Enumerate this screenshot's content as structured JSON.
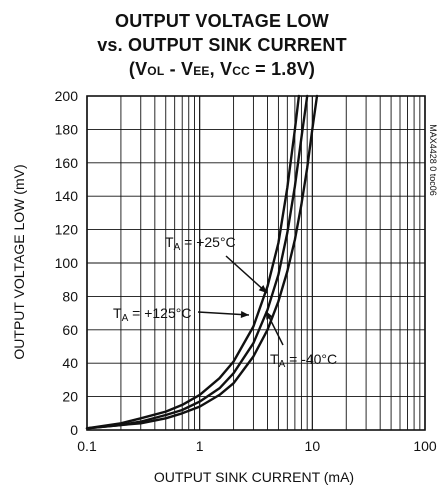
{
  "chart_data": {
    "type": "line",
    "title_line1": "OUTPUT VOLTAGE LOW",
    "title_line2": "vs. OUTPUT SINK CURRENT",
    "title_line3": {
      "open": "(V",
      "vol_sub": "OL",
      "dash": " - V",
      "vee_sub": "EE",
      "sep": ", V",
      "vcc_sub": "CC",
      "tail": " = 1.8V)"
    },
    "xlabel": "OUTPUT SINK CURRENT (mA)",
    "ylabel": "OUTPUT VOLTAGE LOW (mV)",
    "xscale": "log",
    "xlim": [
      0.1,
      100
    ],
    "ylim": [
      0,
      200
    ],
    "x_ticks": [
      "0.1",
      "1",
      "10",
      "100"
    ],
    "y_ticks": [
      "0",
      "20",
      "40",
      "60",
      "80",
      "100",
      "120",
      "140",
      "160",
      "180",
      "200"
    ],
    "grid": true,
    "watermark": "MAX4428 0 toc06",
    "series": [
      {
        "name": "TA = +125°C",
        "label_parts": {
          "t": "T",
          "sub": "A",
          "rest": " = +125°C"
        },
        "x": [
          0.1,
          0.2,
          0.3,
          0.5,
          0.7,
          1.0,
          1.5,
          2.0,
          3.0,
          4.0,
          5.0,
          6.0,
          7.0,
          7.6
        ],
        "y": [
          1.0,
          4.0,
          7.0,
          11.0,
          15.0,
          21.0,
          31.0,
          41.0,
          62.0,
          86.0,
          112.0,
          145.0,
          180.0,
          200.0
        ]
      },
      {
        "name": "TA = +25°C",
        "label_parts": {
          "t": "T",
          "sub": "A",
          "rest": " = +25°C"
        },
        "x": [
          0.1,
          0.2,
          0.3,
          0.5,
          0.7,
          1.0,
          1.5,
          2.0,
          3.0,
          4.0,
          5.0,
          6.0,
          7.0,
          8.0,
          9.0
        ],
        "y": [
          1.0,
          3.0,
          5.0,
          9.0,
          12.0,
          17.0,
          25.0,
          34.0,
          52.0,
          72.0,
          93.0,
          118.0,
          146.0,
          175.0,
          200.0
        ]
      },
      {
        "name": "TA = -40°C",
        "label_parts": {
          "t": "T",
          "sub": "A",
          "rest": " = -40°C"
        },
        "x": [
          0.1,
          0.2,
          0.3,
          0.5,
          0.7,
          1.0,
          1.5,
          2.0,
          3.0,
          4.0,
          5.0,
          6.0,
          7.0,
          8.0,
          9.0,
          10.0,
          11.0
        ],
        "y": [
          1.0,
          3.0,
          4.0,
          7.0,
          10.0,
          14.0,
          21.0,
          28.0,
          44.0,
          60.0,
          77.0,
          95.0,
          114.0,
          135.0,
          157.0,
          180.0,
          200.0
        ]
      }
    ]
  }
}
